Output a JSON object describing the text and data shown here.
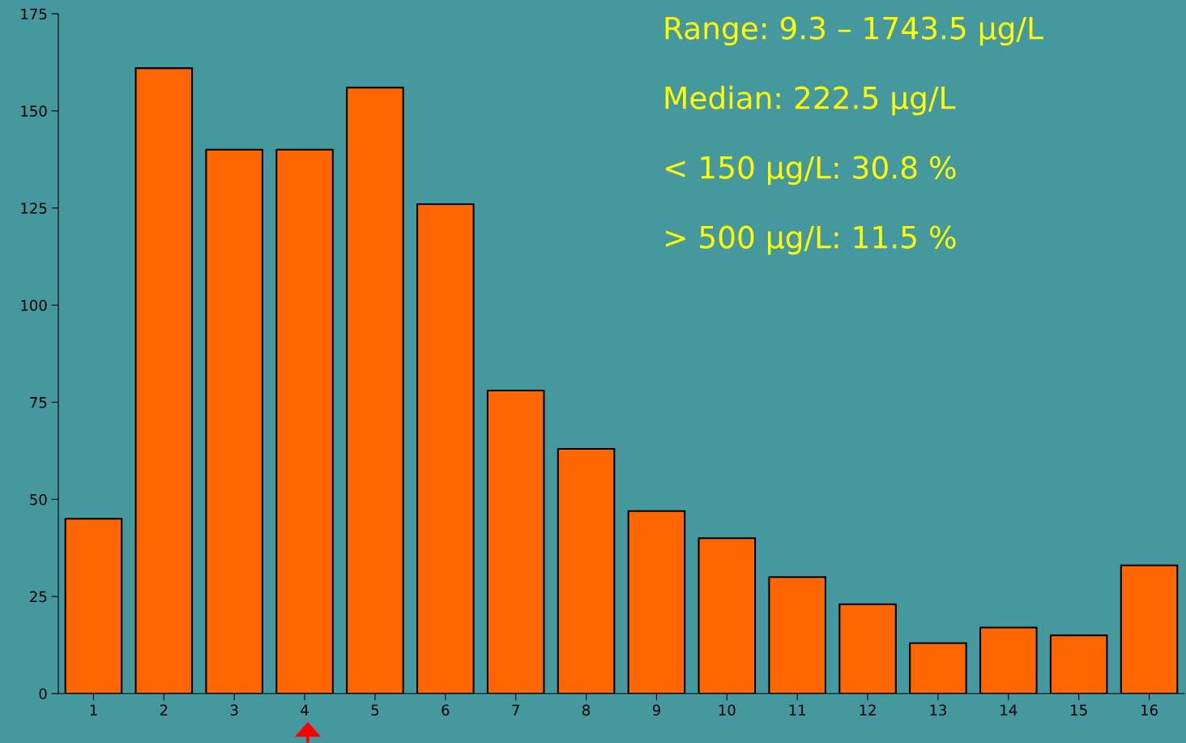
{
  "chart_data": {
    "type": "bar",
    "categories": [
      "1",
      "2",
      "3",
      "4",
      "5",
      "6",
      "7",
      "8",
      "9",
      "10",
      "11",
      "12",
      "13",
      "14",
      "15",
      "16"
    ],
    "values": [
      45,
      161,
      140,
      140,
      156,
      126,
      78,
      63,
      47,
      40,
      30,
      23,
      13,
      17,
      15,
      33
    ],
    "color": "#ff6600",
    "ylim": [
      0,
      175
    ],
    "yticks": [
      0,
      25,
      50,
      75,
      100,
      125,
      150,
      175
    ],
    "grid": false,
    "legend": false,
    "annotations": [
      "Range: 9.3 – 1743.5 µg/L",
      "Median: 222.5 µg/L",
      "< 150 µg/L: 30.8 %",
      "> 500 µg/L: 11.5 %"
    ]
  }
}
